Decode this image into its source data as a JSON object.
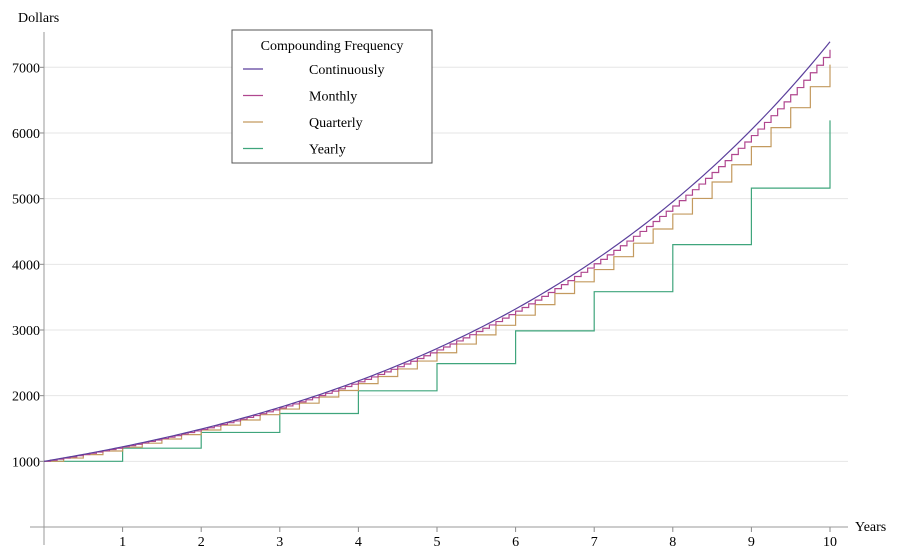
{
  "chart_data": {
    "type": "line",
    "title": "",
    "xlabel": "Years",
    "ylabel": "Dollars",
    "xlim": [
      0,
      10
    ],
    "ylim": [
      0,
      7500
    ],
    "xticks": [
      "1",
      "2",
      "3",
      "4",
      "5",
      "6",
      "7",
      "8",
      "9",
      "10"
    ],
    "yticks": [
      "1000",
      "2000",
      "3000",
      "4000",
      "5000",
      "6000",
      "7000"
    ],
    "grid": "horizontal",
    "principal": 1000,
    "annual_rate": 0.2,
    "legend": {
      "title": "Compounding Frequency",
      "placement": "top-left"
    },
    "series": [
      {
        "name": "Continuously",
        "periods_per_year": 0,
        "color": "#5b3f9c",
        "final_value": 7389
      },
      {
        "name": "Monthly",
        "periods_per_year": 12,
        "color": "#b0478f",
        "final_value": 7268
      },
      {
        "name": "Quarterly",
        "periods_per_year": 4,
        "color": "#c39a5f",
        "final_value": 7040
      },
      {
        "name": "Yearly",
        "periods_per_year": 1,
        "color": "#3fa57c",
        "values": [
          1000,
          1200,
          1440,
          1728,
          2074,
          2488,
          2986,
          3583,
          4300,
          5160,
          6192
        ]
      }
    ]
  }
}
